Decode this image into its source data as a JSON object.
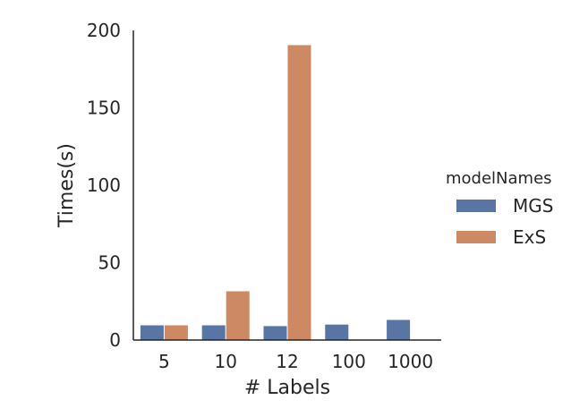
{
  "chart_data": {
    "type": "bar",
    "title": "",
    "xlabel": "# Labels",
    "ylabel": "Times(s)",
    "categories": [
      "5",
      "10",
      "12",
      "100",
      "1000"
    ],
    "ylim": [
      0,
      200
    ],
    "yticks": [
      "0",
      "50",
      "100",
      "150",
      "200"
    ],
    "grid": false,
    "legend": {
      "title": "modelNames",
      "placement": "right"
    },
    "series": [
      {
        "name": "MGS",
        "color": "#5875a4",
        "values": [
          9.5,
          9.5,
          9,
          10,
          13
        ]
      },
      {
        "name": "ExS",
        "color": "#cc8963",
        "values": [
          9.5,
          31.5,
          190.5,
          null,
          null
        ]
      }
    ]
  }
}
